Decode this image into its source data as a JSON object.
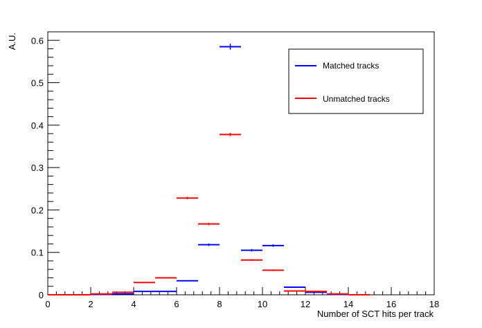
{
  "chart_data": {
    "type": "scatter",
    "title": "",
    "xlabel": "Number of SCT hits per track",
    "ylabel": "A.U.",
    "xlim": [
      0,
      18
    ],
    "ylim": [
      0,
      0.62
    ],
    "x_ticks": [
      0,
      2,
      4,
      6,
      8,
      10,
      12,
      14,
      16,
      18
    ],
    "x_tick_labels": [
      "0",
      "2",
      "4",
      "6",
      "8",
      "10",
      "12",
      "14",
      "16",
      "18"
    ],
    "y_ticks": [
      0,
      0.1,
      0.2,
      0.3,
      0.4,
      0.5,
      0.6
    ],
    "y_tick_labels": [
      "0",
      "0.1",
      "0.2",
      "0.3",
      "0.4",
      "0.5",
      "0.6"
    ],
    "grid": false,
    "legend_position": "top-right",
    "bin_width": 1,
    "series": [
      {
        "name": "Matched tracks",
        "color": "#0000ff",
        "points": [
          {
            "x": 0.5,
            "y": 0,
            "err": 0
          },
          {
            "x": 1.5,
            "y": 0,
            "err": 0
          },
          {
            "x": 2.5,
            "y": 0.001,
            "err": 0
          },
          {
            "x": 3.5,
            "y": 0.002,
            "err": 0.001
          },
          {
            "x": 4.5,
            "y": 0.008,
            "err": 0.001
          },
          {
            "x": 5.5,
            "y": 0.008,
            "err": 0.001
          },
          {
            "x": 6.5,
            "y": 0.033,
            "err": 0.001
          },
          {
            "x": 7.5,
            "y": 0.118,
            "err": 0.003
          },
          {
            "x": 8.5,
            "y": 0.585,
            "err": 0.007
          },
          {
            "x": 9.5,
            "y": 0.105,
            "err": 0.003
          },
          {
            "x": 10.5,
            "y": 0.116,
            "err": 0.003
          },
          {
            "x": 11.5,
            "y": 0.018,
            "err": 0.001
          },
          {
            "x": 12.5,
            "y": 0.006,
            "err": 0.001
          },
          {
            "x": 13.5,
            "y": 0.001,
            "err": 0
          },
          {
            "x": 14.5,
            "y": 0,
            "err": 0
          }
        ]
      },
      {
        "name": "Unmatched tracks",
        "color": "#ff0000",
        "points": [
          {
            "x": 0.5,
            "y": 0,
            "err": 0
          },
          {
            "x": 1.5,
            "y": 0,
            "err": 0
          },
          {
            "x": 2.5,
            "y": 0.002,
            "err": 0
          },
          {
            "x": 3.5,
            "y": 0.006,
            "err": 0.001
          },
          {
            "x": 4.5,
            "y": 0.029,
            "err": 0.001
          },
          {
            "x": 5.5,
            "y": 0.04,
            "err": 0.001
          },
          {
            "x": 6.5,
            "y": 0.228,
            "err": 0.003
          },
          {
            "x": 7.5,
            "y": 0.167,
            "err": 0.003
          },
          {
            "x": 8.5,
            "y": 0.378,
            "err": 0.004
          },
          {
            "x": 9.5,
            "y": 0.082,
            "err": 0.002
          },
          {
            "x": 10.5,
            "y": 0.058,
            "err": 0.002
          },
          {
            "x": 11.5,
            "y": 0.009,
            "err": 0.001
          },
          {
            "x": 12.5,
            "y": 0.008,
            "err": 0.001
          },
          {
            "x": 13.5,
            "y": 0.002,
            "err": 0
          },
          {
            "x": 14.5,
            "y": 0,
            "err": 0
          }
        ]
      }
    ]
  }
}
